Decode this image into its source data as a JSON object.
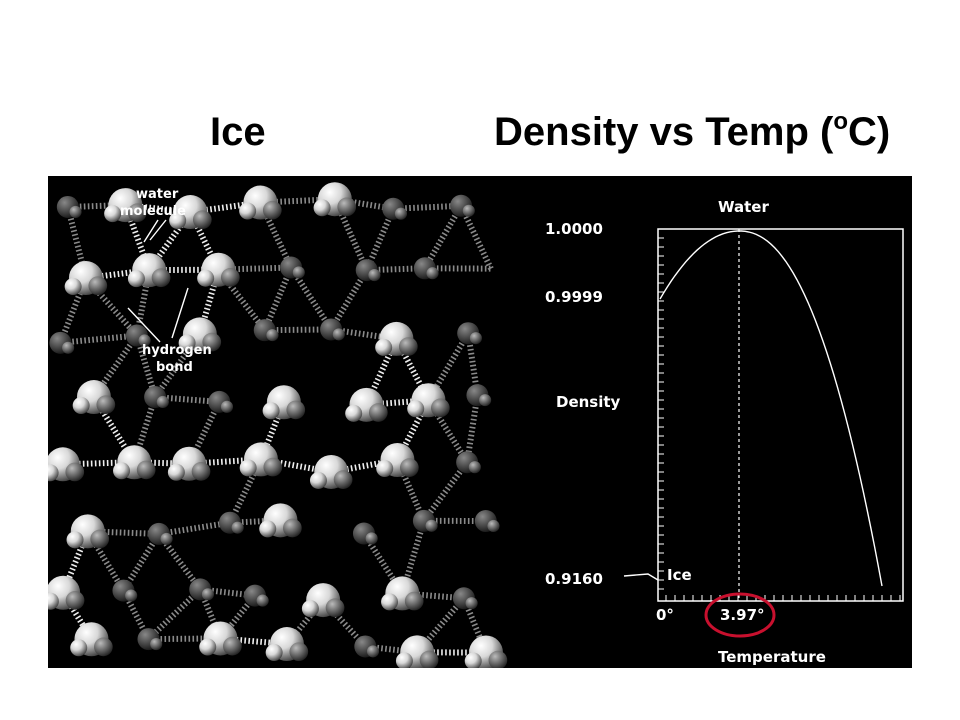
{
  "slide": {
    "left_title": "Ice",
    "right_title_main": "Density vs Temp (",
    "right_title_sup": "o",
    "right_title_end": "C)"
  },
  "ice_diagram": {
    "label_water_line1": "water",
    "label_water_line2": "molecule",
    "label_hbond_line1": "hydrogen",
    "label_hbond_line2": "bond"
  },
  "density_graph": {
    "label_water": "Water",
    "label_density": "Density",
    "label_ice": "Ice",
    "label_temperature": "Temperature",
    "y_tick_top": "1.0000",
    "y_tick_mid": "0.9999",
    "y_tick_bottom": "0.9160",
    "x_tick_zero": "0°",
    "x_tick_max_density": "3.97°",
    "highlight_color": "#c8102e"
  },
  "chart_data": {
    "type": "line",
    "xlabel": "Temperature",
    "ylabel": "Density",
    "x_ticks": [
      "0°",
      "3.97°"
    ],
    "y_ticks": [
      "1.0000",
      "0.9999",
      "0.9160"
    ],
    "series": [
      {
        "name": "Water",
        "x": [
          0,
          3.97,
          8,
          10,
          11.5
        ],
        "y": [
          0.99985,
          1.0,
          0.99985,
          0.9996,
          0.916
        ]
      },
      {
        "name": "Ice",
        "x": [
          0
        ],
        "y": [
          0.916
        ]
      }
    ]
  }
}
